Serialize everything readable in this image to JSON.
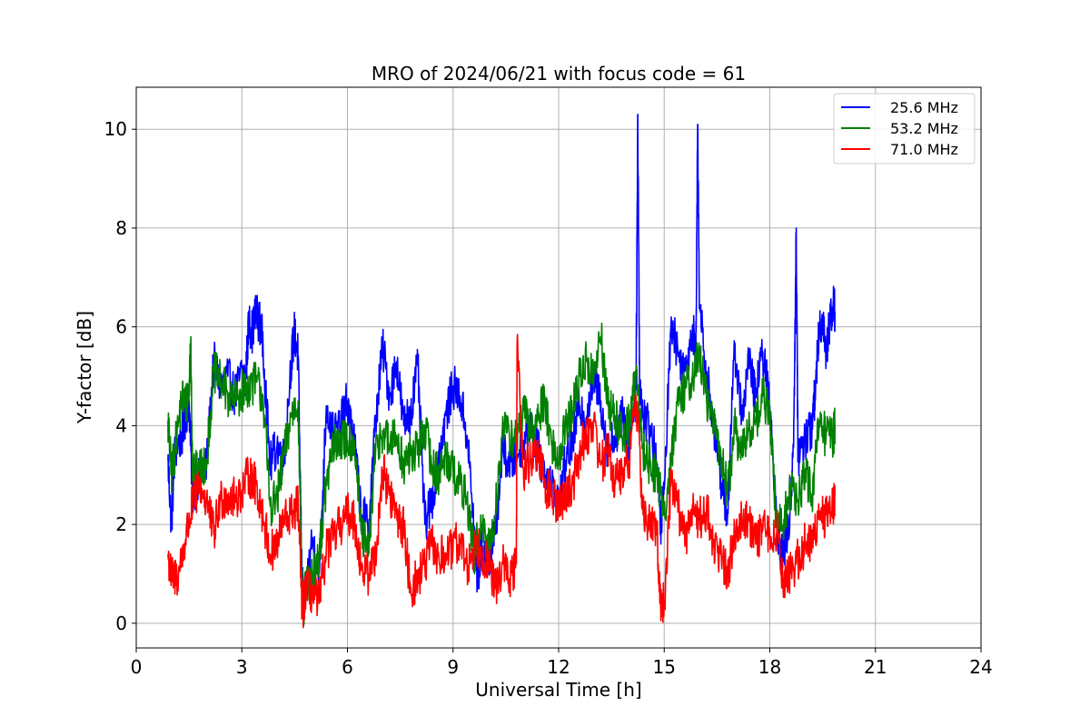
{
  "chart_data": {
    "type": "line",
    "title": "MRO of 2024/06/21 with focus code = 61",
    "xlabel": "Universal Time [h]",
    "ylabel": "Y-factor [dB]",
    "xlim": [
      0,
      24
    ],
    "ylim": [
      -0.5,
      10.85
    ],
    "xticks": [
      0,
      3,
      6,
      9,
      12,
      15,
      18,
      21,
      24
    ],
    "yticks": [
      0,
      2,
      4,
      6,
      8,
      10
    ],
    "grid": true,
    "legend_position": "upper right",
    "series": [
      {
        "name": "25.6 MHz",
        "color": "#0000ff",
        "x": [
          0.9,
          1.0,
          1.1,
          1.3,
          1.4,
          1.5,
          1.6,
          1.8,
          2.0,
          2.2,
          2.4,
          2.6,
          2.8,
          3.0,
          3.1,
          3.2,
          3.3,
          3.4,
          3.5,
          3.6,
          3.8,
          4.0,
          4.2,
          4.4,
          4.5,
          4.6,
          4.7,
          4.75,
          4.8,
          5.0,
          5.2,
          5.4,
          5.6,
          5.8,
          6.0,
          6.2,
          6.4,
          6.6,
          6.8,
          7.0,
          7.2,
          7.4,
          7.6,
          7.8,
          8.0,
          8.2,
          8.4,
          8.6,
          8.8,
          9.0,
          9.2,
          9.4,
          9.6,
          9.7,
          9.8,
          10.0,
          10.2,
          10.4,
          10.6,
          10.8,
          11.0,
          11.2,
          11.4,
          11.6,
          11.8,
          12.0,
          12.2,
          12.4,
          12.6,
          12.8,
          13.0,
          13.2,
          13.4,
          13.6,
          13.8,
          14.0,
          14.2,
          14.25,
          14.3,
          14.4,
          14.6,
          14.8,
          14.9,
          15.0,
          15.2,
          15.4,
          15.6,
          15.8,
          15.9,
          15.95,
          16.0,
          16.2,
          16.4,
          16.6,
          16.8,
          17.0,
          17.2,
          17.4,
          17.6,
          17.8,
          18.0,
          18.2,
          18.3,
          18.4,
          18.6,
          18.7,
          18.75,
          18.8,
          19.0,
          19.2,
          19.3,
          19.4,
          19.5,
          19.6,
          19.7,
          19.8,
          19.85
        ],
        "y": [
          3.3,
          2.0,
          3.5,
          3.8,
          4.2,
          4.5,
          2.6,
          3.0,
          3.2,
          5.3,
          4.8,
          5.0,
          4.6,
          5.1,
          4.9,
          6.1,
          5.9,
          6.3,
          6.1,
          5.7,
          3.2,
          3.6,
          3.3,
          5.3,
          5.9,
          5.4,
          1.2,
          0.3,
          0.6,
          1.7,
          1.0,
          4.4,
          3.8,
          4.0,
          4.5,
          3.6,
          2.2,
          2.0,
          4.1,
          5.6,
          4.6,
          5.3,
          4.0,
          4.3,
          5.2,
          2.0,
          2.5,
          3.4,
          4.2,
          4.8,
          4.6,
          3.8,
          1.9,
          0.8,
          1.6,
          1.3,
          1.8,
          3.5,
          3.2,
          3.4,
          3.7,
          4.1,
          3.5,
          3.1,
          2.8,
          2.4,
          3.3,
          3.7,
          4.4,
          4.2,
          5.0,
          4.5,
          3.5,
          3.8,
          4.2,
          3.6,
          4.8,
          10.3,
          4.9,
          4.2,
          4.0,
          3.2,
          2.0,
          2.7,
          6.2,
          5.4,
          5.1,
          6.0,
          5.5,
          10.1,
          6.4,
          5.1,
          4.0,
          3.0,
          2.2,
          5.6,
          4.2,
          5.3,
          4.6,
          5.5,
          4.4,
          2.1,
          1.4,
          1.5,
          2.3,
          4.6,
          8.0,
          3.4,
          3.7,
          4.0,
          4.8,
          5.9,
          6.2,
          5.5,
          6.1,
          6.5,
          6.3
        ]
      },
      {
        "name": "53.2 MHz",
        "color": "#008000",
        "x": [
          0.9,
          1.0,
          1.1,
          1.3,
          1.4,
          1.5,
          1.55,
          1.6,
          1.8,
          2.0,
          2.2,
          2.4,
          2.6,
          2.8,
          3.0,
          3.2,
          3.4,
          3.6,
          3.8,
          4.0,
          4.2,
          4.4,
          4.6,
          4.7,
          4.75,
          4.8,
          5.0,
          5.2,
          5.4,
          5.6,
          5.8,
          6.0,
          6.2,
          6.4,
          6.6,
          6.8,
          7.0,
          7.2,
          7.4,
          7.6,
          7.8,
          8.0,
          8.2,
          8.4,
          8.6,
          8.8,
          9.0,
          9.2,
          9.4,
          9.6,
          9.8,
          10.0,
          10.2,
          10.4,
          10.6,
          10.8,
          11.0,
          11.2,
          11.4,
          11.6,
          11.8,
          12.0,
          12.2,
          12.4,
          12.6,
          12.8,
          13.0,
          13.2,
          13.4,
          13.6,
          13.8,
          14.0,
          14.2,
          14.4,
          14.6,
          14.8,
          15.0,
          15.2,
          15.4,
          15.6,
          15.8,
          16.0,
          16.2,
          16.4,
          16.6,
          16.8,
          17.0,
          17.2,
          17.4,
          17.6,
          17.8,
          18.0,
          18.2,
          18.4,
          18.6,
          18.8,
          19.0,
          19.2,
          19.4,
          19.6,
          19.8,
          19.85
        ],
        "y": [
          4.1,
          3.0,
          3.5,
          4.6,
          4.4,
          4.7,
          5.8,
          3.0,
          3.1,
          3.3,
          5.1,
          4.9,
          4.6,
          4.5,
          4.7,
          4.8,
          4.9,
          4.6,
          2.4,
          2.5,
          3.4,
          4.2,
          4.5,
          1.0,
          0.2,
          0.7,
          0.9,
          1.4,
          2.8,
          3.6,
          3.7,
          3.7,
          3.7,
          1.8,
          1.4,
          3.5,
          3.9,
          3.6,
          3.8,
          3.2,
          3.4,
          3.5,
          4.0,
          3.2,
          3.0,
          3.4,
          3.1,
          2.8,
          2.5,
          1.4,
          1.9,
          1.5,
          2.2,
          3.9,
          3.8,
          3.7,
          4.3,
          3.9,
          4.1,
          4.6,
          3.6,
          3.3,
          4.0,
          4.3,
          5.0,
          5.3,
          5.0,
          5.8,
          4.4,
          4.2,
          3.8,
          4.0,
          5.1,
          3.5,
          3.2,
          3.0,
          2.2,
          3.4,
          4.4,
          4.8,
          5.0,
          5.4,
          4.6,
          4.0,
          3.5,
          2.6,
          4.0,
          3.4,
          3.9,
          4.1,
          4.6,
          4.2,
          1.9,
          2.1,
          2.7,
          2.5,
          3.0,
          2.6,
          4.0,
          3.8,
          3.8,
          4.0
        ]
      },
      {
        "name": "71.0 MHz",
        "color": "#ff0000",
        "x": [
          0.9,
          1.0,
          1.2,
          1.4,
          1.6,
          1.8,
          2.0,
          2.2,
          2.4,
          2.6,
          2.8,
          3.0,
          3.2,
          3.4,
          3.6,
          3.8,
          4.0,
          4.2,
          4.4,
          4.6,
          4.7,
          4.75,
          4.8,
          5.0,
          5.2,
          5.4,
          5.6,
          5.8,
          6.0,
          6.2,
          6.4,
          6.6,
          6.8,
          7.0,
          7.2,
          7.4,
          7.6,
          7.8,
          8.0,
          8.2,
          8.4,
          8.6,
          8.8,
          9.0,
          9.2,
          9.4,
          9.6,
          9.8,
          10.0,
          10.2,
          10.4,
          10.6,
          10.8,
          10.82,
          11.0,
          11.2,
          11.4,
          11.6,
          11.8,
          12.0,
          12.2,
          12.4,
          12.6,
          12.8,
          13.0,
          13.2,
          13.4,
          13.6,
          13.8,
          14.0,
          14.2,
          14.4,
          14.6,
          14.8,
          14.9,
          15.0,
          15.2,
          15.4,
          15.6,
          15.8,
          16.0,
          16.2,
          16.4,
          16.6,
          16.8,
          17.0,
          17.2,
          17.4,
          17.6,
          17.8,
          18.0,
          18.2,
          18.4,
          18.6,
          18.8,
          19.0,
          19.2,
          19.4,
          19.6,
          19.8,
          19.85
        ],
        "y": [
          1.4,
          0.9,
          1.0,
          1.7,
          2.4,
          2.8,
          2.5,
          1.8,
          2.5,
          2.6,
          2.5,
          2.7,
          3.0,
          2.8,
          2.2,
          1.4,
          1.6,
          2.1,
          2.2,
          2.4,
          0.5,
          0.3,
          0.7,
          0.6,
          0.4,
          1.5,
          1.7,
          2.0,
          2.2,
          2.1,
          1.1,
          1.0,
          1.4,
          3.1,
          2.6,
          2.2,
          1.9,
          0.7,
          0.9,
          1.2,
          1.6,
          1.3,
          1.4,
          1.5,
          1.7,
          1.1,
          1.6,
          1.5,
          1.2,
          0.7,
          1.2,
          0.9,
          1.2,
          5.7,
          3.1,
          3.3,
          3.5,
          2.8,
          2.6,
          2.4,
          2.6,
          2.8,
          3.5,
          3.8,
          4.1,
          3.2,
          3.5,
          2.9,
          3.0,
          3.3,
          4.6,
          2.2,
          2.0,
          1.8,
          0.3,
          0.4,
          3.0,
          2.3,
          1.7,
          2.4,
          2.1,
          2.3,
          1.6,
          1.4,
          1.0,
          1.8,
          2.2,
          2.1,
          1.6,
          1.9,
          1.8,
          1.9,
          0.8,
          1.0,
          1.3,
          1.6,
          1.7,
          2.1,
          2.2,
          2.4,
          2.6
        ]
      }
    ]
  }
}
